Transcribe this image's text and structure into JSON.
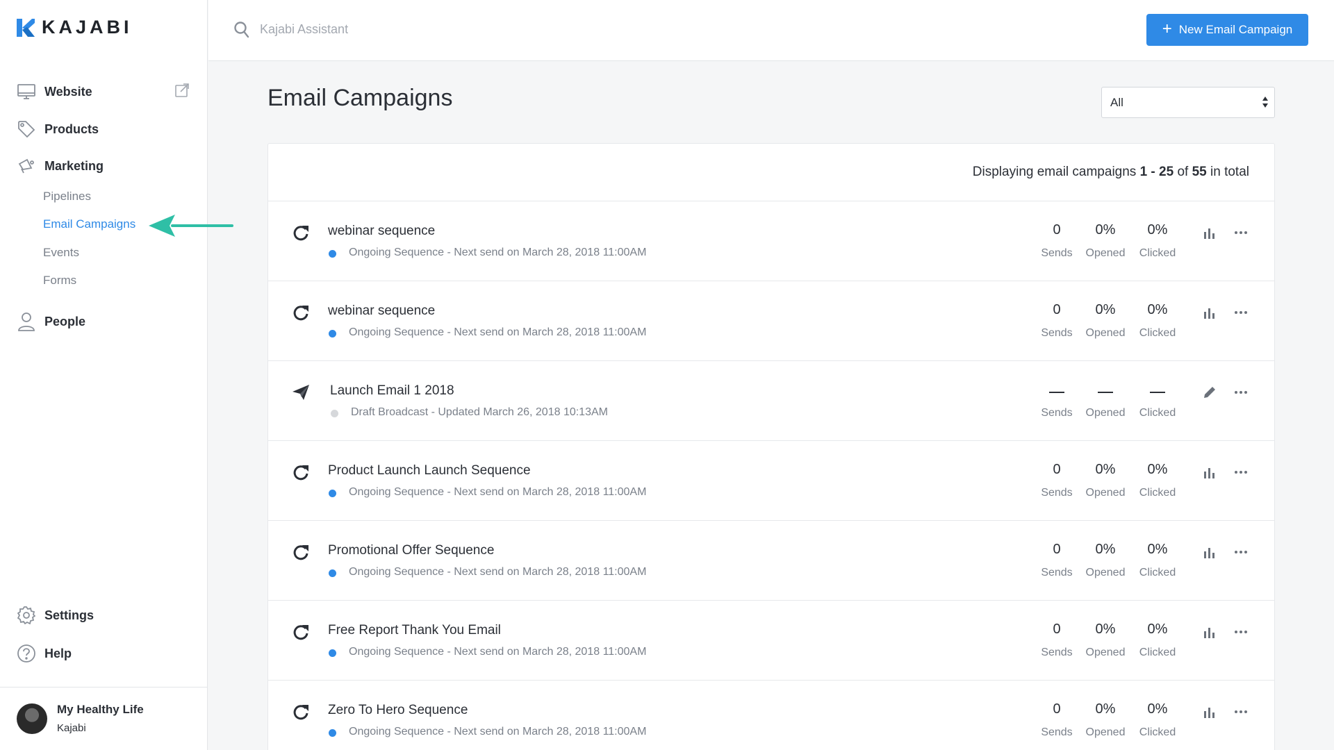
{
  "brand": {
    "name": "KAJABI",
    "accent": "#2f8ae6"
  },
  "sidebar": {
    "items": [
      {
        "label": "Website",
        "icon": "monitor-icon"
      },
      {
        "label": "Products",
        "icon": "tag-icon"
      },
      {
        "label": "Marketing",
        "icon": "megaphone-icon"
      },
      {
        "label": "People",
        "icon": "person-icon"
      },
      {
        "label": "Settings",
        "icon": "gear-icon"
      },
      {
        "label": "Help",
        "icon": "question-icon"
      }
    ],
    "marketing_sub": [
      "Pipelines",
      "Email Campaigns",
      "Events",
      "Forms"
    ],
    "active_sub": "Email Campaigns"
  },
  "user": {
    "name": "My Healthy Life",
    "subtitle": "Kajabi"
  },
  "search": {
    "placeholder": "Kajabi Assistant"
  },
  "toolbar": {
    "new_label": "New Email Campaign"
  },
  "main": {
    "title": "Email Campaigns",
    "filter": {
      "selected": "All"
    },
    "displaying": {
      "prefix": "Displaying email campaigns",
      "range": "1 - 25",
      "of": "of",
      "total": "55",
      "suffix": "in total"
    },
    "stat_labels": {
      "sends": "Sends",
      "opened": "Opened",
      "clicked": "Clicked"
    },
    "campaigns": [
      {
        "name": "webinar sequence",
        "type": "sequence",
        "status": "Ongoing Sequence - Next send on March 28, 2018 11:00AM",
        "dot": "#2f8ae6",
        "sends": "0",
        "opened": "0%",
        "clicked": "0%",
        "action": "chart-icon"
      },
      {
        "name": "webinar sequence",
        "type": "sequence",
        "status": "Ongoing Sequence - Next send on March 28, 2018 11:00AM",
        "dot": "#2f8ae6",
        "sends": "0",
        "opened": "0%",
        "clicked": "0%",
        "action": "chart-icon"
      },
      {
        "name": "Launch Email 1 2018",
        "type": "broadcast",
        "status": "Draft Broadcast - Updated March 26, 2018 10:13AM",
        "dot": "#d6d8db",
        "sends": "",
        "opened": "",
        "clicked": "",
        "action": "pencil-icon"
      },
      {
        "name": "Product Launch Launch Sequence",
        "type": "sequence",
        "status": "Ongoing Sequence - Next send on March 28, 2018 11:00AM",
        "dot": "#2f8ae6",
        "sends": "0",
        "opened": "0%",
        "clicked": "0%",
        "action": "chart-icon"
      },
      {
        "name": "Promotional Offer Sequence",
        "type": "sequence",
        "status": "Ongoing Sequence - Next send on March 28, 2018 11:00AM",
        "dot": "#2f8ae6",
        "sends": "0",
        "opened": "0%",
        "clicked": "0%",
        "action": "chart-icon"
      },
      {
        "name": "Free Report Thank You Email",
        "type": "sequence",
        "status": "Ongoing Sequence - Next send on March 28, 2018 11:00AM",
        "dot": "#2f8ae6",
        "sends": "0",
        "opened": "0%",
        "clicked": "0%",
        "action": "chart-icon"
      },
      {
        "name": "Zero To Hero Sequence",
        "type": "sequence",
        "status": "Ongoing Sequence - Next send on March 28, 2018 11:00AM",
        "dot": "#2f8ae6",
        "sends": "0",
        "opened": "0%",
        "clicked": "0%",
        "action": "chart-icon"
      }
    ]
  }
}
